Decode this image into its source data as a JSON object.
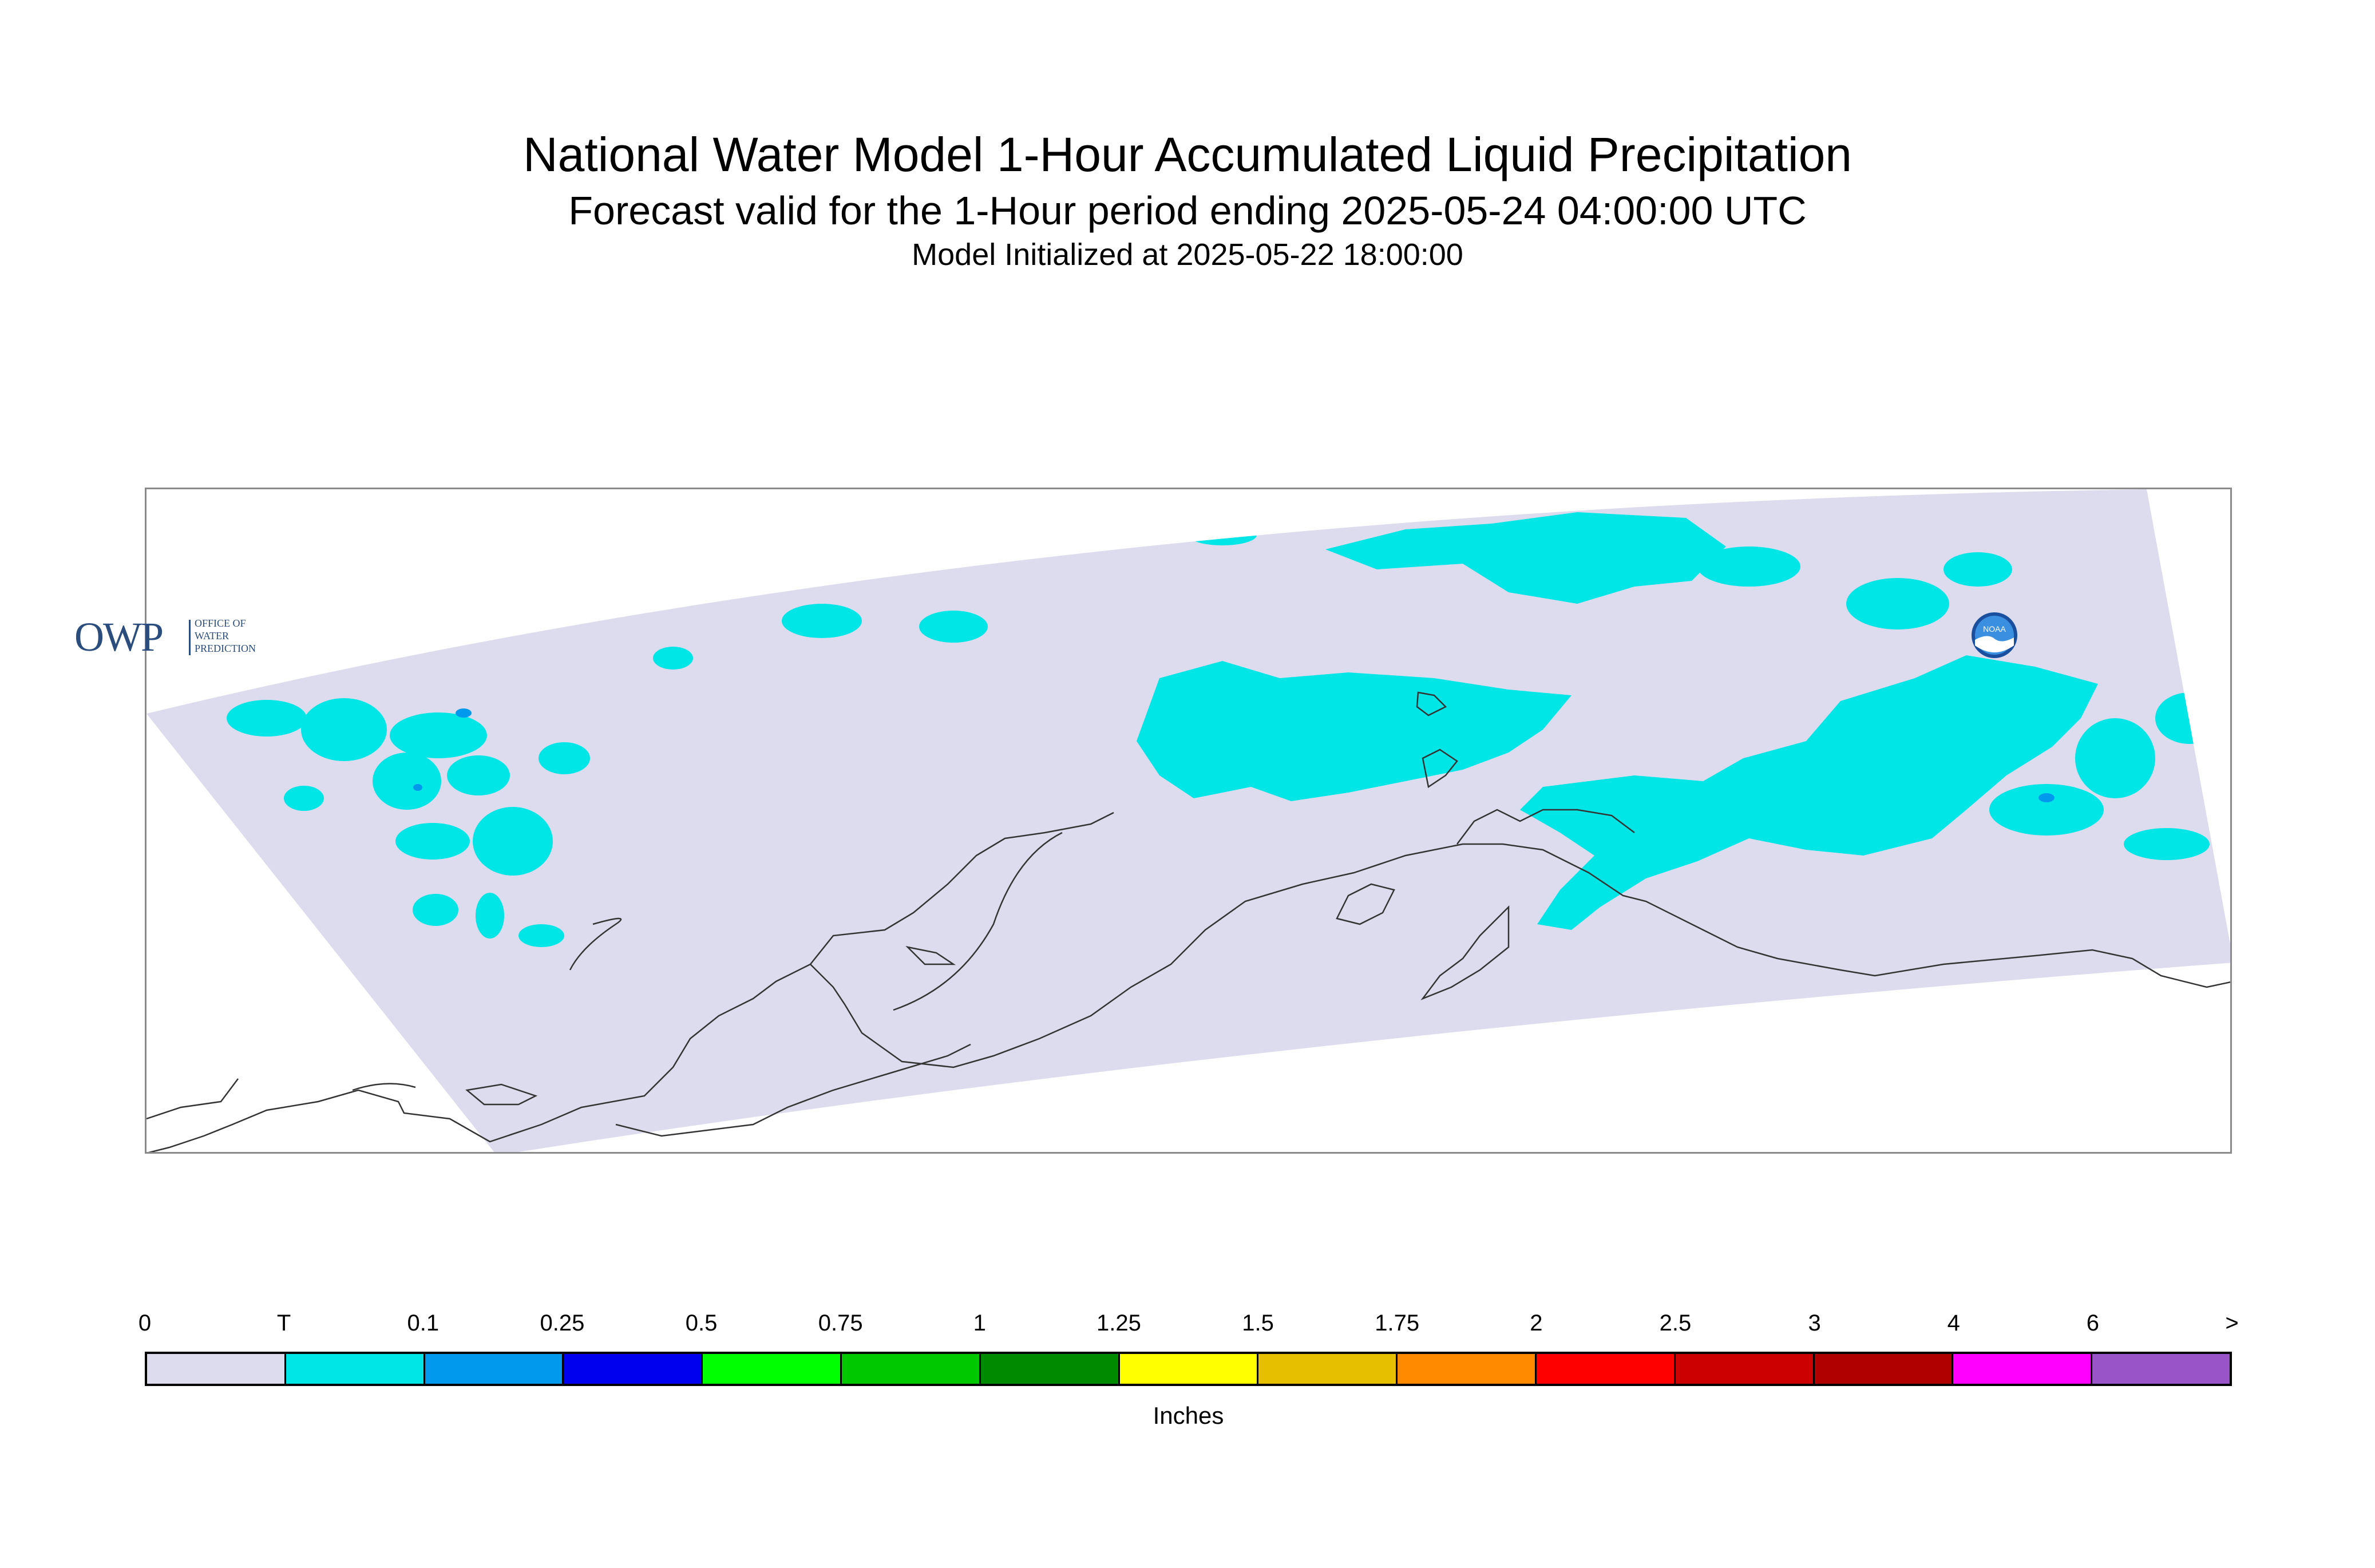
{
  "header": {
    "title": "National Water Model 1-Hour Accumulated Liquid Precipitation",
    "subtitle": "Forecast valid for the 1-Hour period ending 2025-05-24 04:00:00 UTC",
    "init_line": "Model Initialized at 2025-05-22 18:00:00"
  },
  "map": {
    "region": "Alaska",
    "background_color": "#dcdcee",
    "coastline_color": "#333333",
    "dominant_category": "T"
  },
  "logos": {
    "owp": {
      "mark": "OWP",
      "line1": "OFFICE OF",
      "line2": "WATER",
      "line3": "PREDICTION",
      "icon": "owp-logo"
    },
    "noaa": {
      "mark": "NOAA",
      "icon": "noaa-logo"
    }
  },
  "legend": {
    "units": "Inches",
    "tick_labels": [
      "0",
      "T",
      "0.1",
      "0.25",
      "0.5",
      "0.75",
      "1",
      "1.25",
      "1.5",
      "1.75",
      "2",
      "2.5",
      "3",
      "4",
      "6",
      ">"
    ],
    "colors": [
      "#dcdcee",
      "#00e5e5",
      "#0099ee",
      "#0000ee",
      "#00ff00",
      "#00c800",
      "#008a00",
      "#ffff00",
      "#e5bf00",
      "#ff8a00",
      "#ff0000",
      "#cc0000",
      "#b00000",
      "#ff00ff",
      "#9955c8"
    ]
  }
}
